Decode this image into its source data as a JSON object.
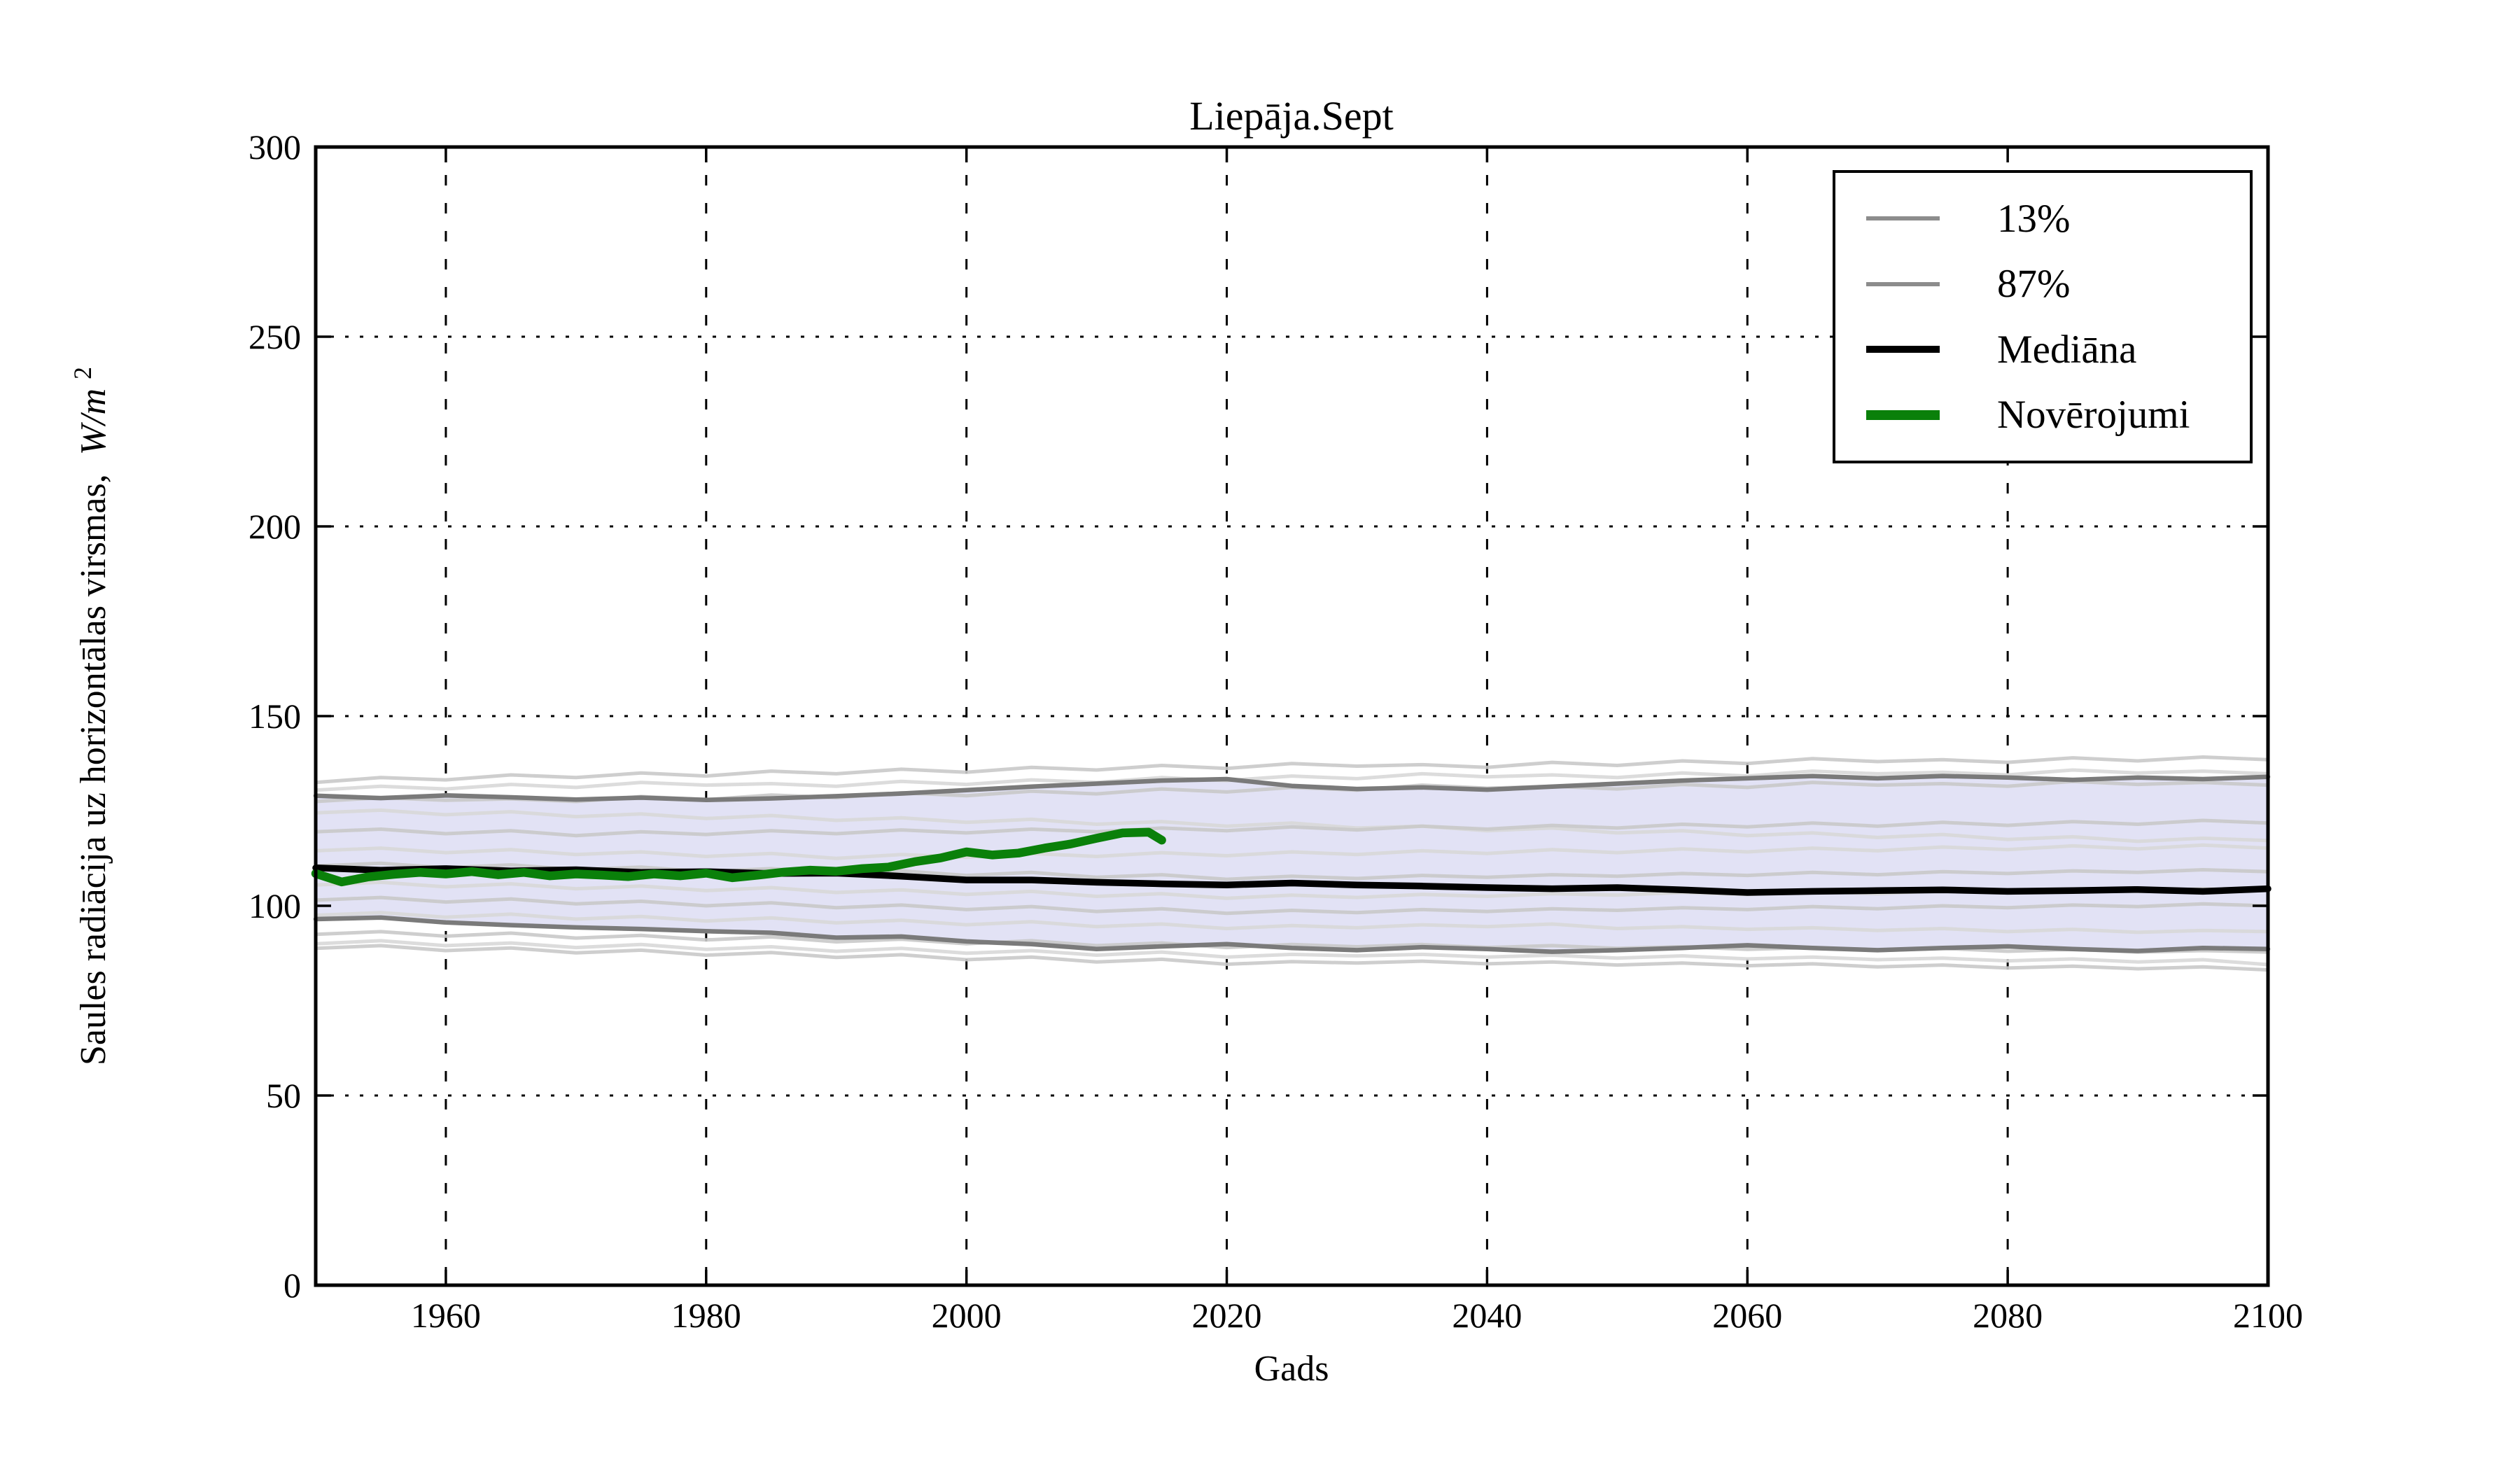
{
  "chart_data": {
    "type": "line",
    "title": "Liepāja.Sept",
    "xlabel": "Gads",
    "ylabel": "Saules radiācija uz horizontālas virsmas, W/m²",
    "ylabel_parts": {
      "text": "Saules radiācija uz horizontālas virsmas,",
      "units": "W/m",
      "exponent": "2"
    },
    "xlim": [
      1950,
      2100
    ],
    "ylim": [
      0,
      300
    ],
    "xticks": [
      1960,
      1980,
      2000,
      2020,
      2040,
      2060,
      2080,
      2100
    ],
    "yticks": [
      0,
      50,
      100,
      150,
      200,
      250,
      300
    ],
    "grid": true,
    "legend_position": "upper right",
    "legend": {
      "items": [
        {
          "label": "13%",
          "color": "#8c8c8c",
          "sample_weight": 6
        },
        {
          "label": "87%",
          "color": "#8c8c8c",
          "sample_weight": 6
        },
        {
          "label": "Mediāna",
          "color": "#000000",
          "sample_weight": 10
        },
        {
          "label": "Novērojumi",
          "color": "#0a800a",
          "sample_weight": 14
        }
      ]
    },
    "band": {
      "fill_color": "#e2e2f5",
      "lower_series": "13%",
      "upper_series": "87%"
    },
    "series": [
      {
        "name": "13%",
        "role": "percentile-lower",
        "color": "#7a7a7a",
        "x": [
          1950,
          1955,
          1960,
          1965,
          1970,
          1975,
          1980,
          1985,
          1990,
          1995,
          2000,
          2005,
          2010,
          2015,
          2020,
          2025,
          2030,
          2035,
          2040,
          2045,
          2050,
          2055,
          2060,
          2065,
          2070,
          2075,
          2080,
          2085,
          2090,
          2095,
          2100
        ],
        "y": [
          96.5,
          96.9,
          95.6,
          94.9,
          94.3,
          93.9,
          93.3,
          92.9,
          91.6,
          91.9,
          90.6,
          89.9,
          88.6,
          89.3,
          89.9,
          88.9,
          88.3,
          89.1,
          88.6,
          87.9,
          88.3,
          88.9,
          89.6,
          88.9,
          88.3,
          88.9,
          89.3,
          88.6,
          88.1,
          88.9,
          88.6
        ]
      },
      {
        "name": "87%",
        "role": "percentile-upper",
        "color": "#7a7a7a",
        "x": [
          1950,
          1955,
          1960,
          1965,
          1970,
          1975,
          1980,
          1985,
          1990,
          1995,
          2000,
          2005,
          2010,
          2015,
          2020,
          2025,
          2030,
          2035,
          2040,
          2045,
          2050,
          2055,
          2060,
          2065,
          2070,
          2075,
          2080,
          2085,
          2090,
          2095,
          2100
        ],
        "y": [
          129.0,
          128.4,
          129.1,
          128.6,
          128.0,
          128.5,
          127.9,
          128.3,
          128.9,
          129.6,
          130.5,
          131.4,
          132.2,
          133.0,
          133.4,
          131.6,
          130.8,
          131.2,
          130.6,
          131.4,
          132.2,
          133.0,
          133.6,
          134.2,
          133.6,
          134.2,
          133.8,
          133.2,
          133.8,
          133.4,
          134.0
        ]
      },
      {
        "name": "Mediāna",
        "role": "median",
        "color": "#000000",
        "x": [
          1950,
          1955,
          1960,
          1965,
          1970,
          1975,
          1980,
          1985,
          1990,
          1995,
          2000,
          2005,
          2010,
          2015,
          2020,
          2025,
          2030,
          2035,
          2040,
          2045,
          2050,
          2055,
          2060,
          2065,
          2070,
          2075,
          2080,
          2085,
          2090,
          2095,
          2100
        ],
        "y": [
          110.0,
          109.4,
          109.8,
          109.2,
          109.5,
          108.8,
          109.0,
          108.5,
          108.6,
          107.8,
          106.8,
          106.8,
          106.2,
          105.8,
          105.5,
          106.0,
          105.5,
          105.2,
          104.8,
          104.5,
          104.8,
          104.2,
          103.5,
          103.8,
          104.0,
          104.2,
          103.8,
          104.0,
          104.3,
          103.8,
          104.5
        ]
      },
      {
        "name": "Novērojumi",
        "role": "observations",
        "color": "#0a800a",
        "x": [
          1950,
          1952,
          1954,
          1956,
          1958,
          1960,
          1962,
          1964,
          1966,
          1968,
          1970,
          1972,
          1974,
          1976,
          1978,
          1980,
          1982,
          1984,
          1986,
          1988,
          1990,
          1992,
          1994,
          1996,
          1998,
          2000,
          2002,
          2004,
          2006,
          2008,
          2010,
          2012,
          2014,
          2015
        ],
        "y": [
          108.5,
          106.3,
          107.6,
          108.3,
          108.8,
          108.4,
          109.0,
          108.2,
          108.8,
          107.9,
          108.4,
          108.1,
          107.7,
          108.4,
          107.9,
          108.6,
          107.4,
          108.1,
          108.9,
          109.4,
          109.1,
          109.8,
          110.2,
          111.6,
          112.6,
          114.2,
          113.4,
          113.9,
          115.2,
          116.3,
          117.8,
          119.2,
          119.4,
          117.3
        ]
      }
    ],
    "ensemble": {
      "description": "individual model runs",
      "color_a": "#c9c9c9",
      "color_b": "#d8d8d8",
      "x": [
        1950,
        1955,
        1960,
        1965,
        1970,
        1975,
        1980,
        1985,
        1990,
        1995,
        2000,
        2005,
        2010,
        2015,
        2020,
        2025,
        2030,
        2035,
        2040,
        2045,
        2050,
        2055,
        2060,
        2065,
        2070,
        2075,
        2080,
        2085,
        2090,
        2095,
        2100
      ],
      "runs": [
        [
          132.5,
          133.8,
          133.2,
          134.5,
          133.8,
          135.0,
          134.2,
          135.5,
          134.8,
          136.0,
          135.2,
          136.5,
          135.8,
          137.0,
          136.2,
          137.5,
          136.8,
          137.2,
          136.5,
          137.8,
          137.0,
          138.2,
          137.5,
          138.8,
          138.0,
          138.5,
          137.8,
          139.0,
          138.2,
          139.2,
          138.5
        ],
        [
          130.5,
          131.5,
          130.8,
          132.0,
          131.2,
          132.5,
          131.8,
          132.2,
          131.5,
          132.8,
          132.0,
          133.2,
          132.5,
          133.8,
          133.0,
          134.2,
          133.5,
          134.8,
          134.0,
          134.5,
          133.8,
          135.0,
          134.2,
          135.5,
          134.8,
          135.2,
          134.5,
          135.8,
          135.0,
          135.5,
          134.8
        ],
        [
          127.5,
          128.5,
          127.8,
          128.2,
          127.5,
          128.8,
          128.0,
          129.2,
          128.5,
          129.8,
          129.0,
          130.2,
          129.5,
          130.8,
          130.0,
          131.2,
          130.5,
          131.8,
          131.0,
          131.5,
          130.8,
          132.0,
          131.2,
          132.5,
          131.8,
          132.2,
          131.5,
          132.8,
          132.0,
          132.5,
          131.8
        ],
        [
          124.5,
          125.2,
          124.0,
          124.8,
          123.5,
          124.2,
          123.0,
          123.8,
          122.5,
          123.2,
          122.0,
          122.8,
          121.5,
          122.2,
          121.0,
          121.8,
          120.5,
          121.0,
          119.8,
          120.5,
          119.2,
          119.8,
          118.5,
          119.2,
          118.0,
          118.8,
          117.5,
          118.2,
          117.0,
          117.8,
          117.2
        ],
        [
          119.5,
          120.2,
          119.0,
          119.8,
          118.5,
          119.5,
          118.8,
          119.8,
          119.0,
          120.0,
          119.2,
          120.2,
          119.5,
          120.5,
          119.8,
          120.8,
          120.0,
          121.0,
          120.2,
          121.2,
          120.5,
          121.5,
          120.8,
          121.8,
          121.0,
          122.0,
          121.2,
          122.2,
          121.5,
          122.5,
          121.8
        ],
        [
          114.5,
          115.2,
          114.0,
          114.8,
          113.5,
          114.2,
          113.0,
          113.8,
          112.5,
          113.5,
          112.8,
          113.8,
          113.0,
          114.0,
          113.2,
          114.2,
          113.5,
          114.5,
          113.8,
          114.8,
          114.0,
          115.0,
          114.2,
          115.2,
          114.5,
          115.5,
          114.8,
          115.8,
          115.0,
          116.0,
          115.2
        ],
        [
          110.5,
          111.2,
          110.0,
          110.8,
          109.5,
          110.2,
          109.0,
          109.8,
          108.5,
          109.2,
          108.0,
          108.8,
          107.5,
          108.2,
          107.0,
          107.8,
          107.2,
          108.0,
          107.5,
          108.2,
          107.8,
          108.5,
          108.0,
          108.8,
          108.2,
          109.0,
          108.5,
          109.2,
          108.8,
          109.5,
          109.0
        ],
        [
          105.5,
          106.2,
          105.0,
          105.8,
          104.5,
          105.2,
          104.0,
          104.8,
          103.5,
          104.2,
          103.0,
          103.8,
          102.5,
          103.2,
          102.0,
          102.8,
          102.2,
          103.0,
          102.5,
          103.2,
          102.8,
          103.5,
          103.0,
          103.8,
          103.2,
          104.0,
          103.5,
          104.2,
          103.8,
          104.5,
          104.0
        ],
        [
          101.5,
          102.2,
          101.0,
          101.8,
          100.5,
          101.2,
          100.0,
          100.8,
          99.5,
          100.2,
          99.0,
          99.8,
          98.5,
          99.2,
          98.0,
          98.8,
          98.2,
          99.0,
          98.5,
          99.2,
          98.8,
          99.5,
          99.0,
          99.8,
          99.2,
          100.0,
          99.5,
          100.2,
          99.8,
          100.5,
          100.0
        ],
        [
          97.5,
          98.2,
          97.0,
          97.8,
          96.5,
          97.2,
          96.0,
          96.8,
          95.5,
          96.2,
          95.0,
          95.8,
          94.5,
          95.2,
          94.0,
          94.8,
          94.2,
          95.0,
          94.5,
          95.2,
          94.0,
          94.5,
          93.8,
          94.2,
          93.5,
          94.0,
          93.2,
          93.8,
          93.0,
          93.5,
          93.2
        ],
        [
          92.5,
          93.2,
          92.0,
          92.8,
          91.5,
          92.2,
          91.0,
          91.8,
          90.5,
          91.2,
          90.0,
          90.8,
          89.5,
          90.2,
          89.0,
          89.8,
          89.2,
          89.8,
          89.0,
          89.5,
          88.8,
          89.2,
          88.5,
          89.0,
          88.2,
          88.8,
          88.0,
          88.5,
          87.8,
          88.2,
          87.8
        ],
        [
          90.0,
          90.8,
          89.5,
          90.2,
          89.0,
          89.8,
          88.5,
          89.2,
          88.0,
          88.8,
          87.5,
          88.2,
          87.0,
          87.8,
          86.5,
          87.2,
          86.8,
          87.2,
          86.5,
          87.0,
          86.2,
          86.8,
          86.0,
          86.5,
          85.8,
          86.2,
          85.5,
          86.0,
          85.2,
          85.8,
          84.5
        ],
        [
          88.8,
          89.5,
          88.2,
          88.9,
          87.6,
          88.3,
          87.0,
          87.7,
          86.4,
          87.1,
          85.8,
          86.5,
          85.2,
          85.9,
          84.6,
          85.3,
          84.9,
          85.4,
          84.7,
          85.2,
          84.4,
          84.9,
          84.2,
          84.7,
          83.9,
          84.4,
          83.6,
          84.1,
          83.4,
          83.9,
          83.1
        ]
      ]
    }
  },
  "colors": {
    "background": "#ffffff",
    "band_fill": "#e2e2f5",
    "percentile_line": "#7a7a7a",
    "ensemble_line": "#c9c9c9",
    "median_line": "#000000",
    "observations_line": "#0a800a",
    "axis": "#000000"
  }
}
